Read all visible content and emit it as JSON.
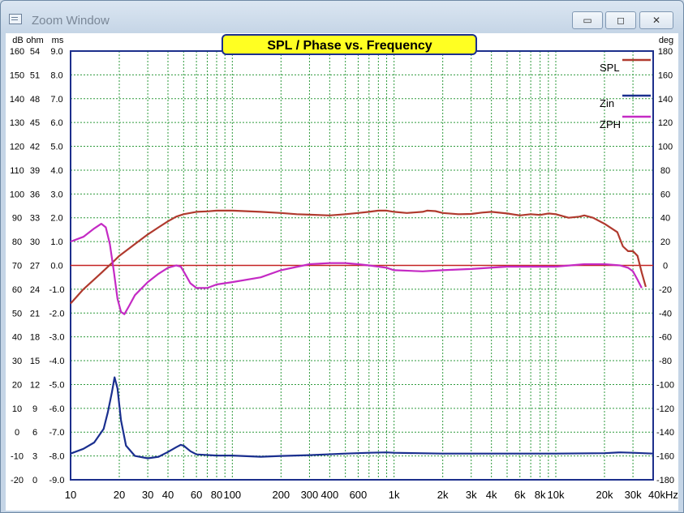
{
  "window": {
    "title": "Zoom Window",
    "buttons": {
      "minimize": "▭",
      "maximize": "◻",
      "close": "✕"
    }
  },
  "chart_data": {
    "type": "line",
    "title": "SPL / Phase vs. Frequency",
    "x_scale": "log",
    "xlim": [
      10,
      40000
    ],
    "x_ticks": [
      {
        "v": 10,
        "label": "10"
      },
      {
        "v": 20,
        "label": "20"
      },
      {
        "v": 30,
        "label": "30"
      },
      {
        "v": 40,
        "label": "40"
      },
      {
        "v": 60,
        "label": "60"
      },
      {
        "v": 80,
        "label": "80"
      },
      {
        "v": 100,
        "label": "100"
      },
      {
        "v": 200,
        "label": "200"
      },
      {
        "v": 300,
        "label": "300"
      },
      {
        "v": 400,
        "label": "400"
      },
      {
        "v": 600,
        "label": "600"
      },
      {
        "v": 1000,
        "label": "1k"
      },
      {
        "v": 2000,
        "label": "2k"
      },
      {
        "v": 3000,
        "label": "3k"
      },
      {
        "v": 4000,
        "label": "4k"
      },
      {
        "v": 6000,
        "label": "6k"
      },
      {
        "v": 8000,
        "label": "8k"
      },
      {
        "v": 10000,
        "label": "10k"
      },
      {
        "v": 20000,
        "label": "20k"
      },
      {
        "v": 30000,
        "label": "30k"
      },
      {
        "v": 40000,
        "label": "40kHz"
      }
    ],
    "left_axes": [
      {
        "unit": "dB",
        "ticks": [
          "160",
          "150",
          "140",
          "130",
          "120",
          "110",
          "100",
          "90",
          "80",
          "70",
          "60",
          "50",
          "40",
          "30",
          "20",
          "10",
          "0",
          "-10",
          "-20"
        ]
      },
      {
        "unit": "ohm",
        "ticks": [
          "54",
          "51",
          "48",
          "45",
          "42",
          "39",
          "36",
          "33",
          "30",
          "27",
          "24",
          "21",
          "18",
          "15",
          "12",
          "9",
          "6",
          "3",
          "0"
        ]
      },
      {
        "unit": "ms",
        "ticks": [
          "9.0",
          "8.0",
          "7.0",
          "6.0",
          "5.0",
          "4.0",
          "3.0",
          "2.0",
          "1.0",
          "0.0",
          "-1.0",
          "-2.0",
          "-3.0",
          "-4.0",
          "-5.0",
          "-6.0",
          "-7.0",
          "-8.0",
          "-9.0"
        ]
      }
    ],
    "right_axis": {
      "unit": "deg",
      "ticks": [
        "180",
        "160",
        "140",
        "120",
        "100",
        "80",
        "60",
        "40",
        "20",
        "0",
        "-20",
        "-40",
        "-60",
        "-80",
        "-100",
        "-120",
        "-140",
        "-160",
        "-180"
      ]
    },
    "ylim_db": [
      -20,
      160
    ],
    "ylim_deg": [
      -180,
      180
    ],
    "legend_position": "top-right",
    "grid": true,
    "series": [
      {
        "name": "SPL",
        "axis": "dB",
        "color": "#b03a2e",
        "points": [
          [
            10,
            54
          ],
          [
            12,
            60
          ],
          [
            15,
            66
          ],
          [
            18,
            71
          ],
          [
            20,
            74
          ],
          [
            25,
            79
          ],
          [
            30,
            83
          ],
          [
            35,
            86
          ],
          [
            40,
            88.5
          ],
          [
            45,
            90.5
          ],
          [
            50,
            91.5
          ],
          [
            60,
            92.5
          ],
          [
            70,
            92.7
          ],
          [
            80,
            93
          ],
          [
            100,
            93
          ],
          [
            150,
            92.5
          ],
          [
            200,
            92
          ],
          [
            250,
            91.5
          ],
          [
            300,
            91.3
          ],
          [
            400,
            91
          ],
          [
            500,
            91.5
          ],
          [
            600,
            92
          ],
          [
            700,
            92.5
          ],
          [
            800,
            93
          ],
          [
            900,
            93
          ],
          [
            1000,
            92.5
          ],
          [
            1200,
            92
          ],
          [
            1500,
            92.5
          ],
          [
            1600,
            93
          ],
          [
            1800,
            92.8
          ],
          [
            2000,
            92
          ],
          [
            2500,
            91.5
          ],
          [
            3000,
            91.6
          ],
          [
            3500,
            92.2
          ],
          [
            4000,
            92.5
          ],
          [
            5000,
            91.8
          ],
          [
            6000,
            91
          ],
          [
            7000,
            91.5
          ],
          [
            8000,
            91.2
          ],
          [
            9000,
            91.8
          ],
          [
            10000,
            91.5
          ],
          [
            12000,
            90
          ],
          [
            14000,
            90.5
          ],
          [
            15000,
            91
          ],
          [
            17000,
            90
          ],
          [
            20000,
            87.5
          ],
          [
            24000,
            84
          ],
          [
            26000,
            78
          ],
          [
            28000,
            76
          ],
          [
            30000,
            76
          ],
          [
            32000,
            74
          ],
          [
            34000,
            67
          ],
          [
            36000,
            61
          ]
        ]
      },
      {
        "name": "Zin",
        "axis": "ohm",
        "color": "#1a2f8f",
        "points": [
          [
            10,
            3.3
          ],
          [
            12,
            3.9
          ],
          [
            14,
            4.7
          ],
          [
            16,
            6.4
          ],
          [
            17,
            8.5
          ],
          [
            18,
            11
          ],
          [
            18.7,
            12.9
          ],
          [
            19.5,
            11.5
          ],
          [
            20.5,
            7.5
          ],
          [
            22,
            4.3
          ],
          [
            25,
            3
          ],
          [
            30,
            2.7
          ],
          [
            35,
            2.9
          ],
          [
            40,
            3.5
          ],
          [
            45,
            4.1
          ],
          [
            48,
            4.4
          ],
          [
            50,
            4.3
          ],
          [
            55,
            3.6
          ],
          [
            60,
            3.2
          ],
          [
            80,
            3.05
          ],
          [
            100,
            3.05
          ],
          [
            150,
            2.9
          ],
          [
            200,
            3
          ],
          [
            300,
            3.1
          ],
          [
            500,
            3.3
          ],
          [
            700,
            3.4
          ],
          [
            900,
            3.45
          ],
          [
            1000,
            3.4
          ],
          [
            2000,
            3.3
          ],
          [
            5000,
            3.3
          ],
          [
            10000,
            3.3
          ],
          [
            20000,
            3.35
          ],
          [
            25000,
            3.45
          ],
          [
            30000,
            3.4
          ],
          [
            40000,
            3.3
          ]
        ]
      },
      {
        "name": "ZPH",
        "axis": "deg",
        "color": "#c42ac4",
        "points": [
          [
            10,
            20
          ],
          [
            12,
            24
          ],
          [
            14,
            31
          ],
          [
            15.5,
            35
          ],
          [
            16.5,
            32
          ],
          [
            17.5,
            18
          ],
          [
            18.5,
            -5
          ],
          [
            19.5,
            -28
          ],
          [
            20.5,
            -39
          ],
          [
            21.5,
            -41
          ],
          [
            23,
            -34
          ],
          [
            25,
            -25
          ],
          [
            30,
            -14
          ],
          [
            35,
            -7
          ],
          [
            40,
            -2
          ],
          [
            45,
            0
          ],
          [
            48,
            -1
          ],
          [
            50,
            -5
          ],
          [
            55,
            -15
          ],
          [
            60,
            -19
          ],
          [
            70,
            -19
          ],
          [
            80,
            -16
          ],
          [
            100,
            -14
          ],
          [
            150,
            -10
          ],
          [
            200,
            -4
          ],
          [
            300,
            1
          ],
          [
            400,
            2
          ],
          [
            500,
            2
          ],
          [
            600,
            1
          ],
          [
            700,
            0
          ],
          [
            800,
            -1
          ],
          [
            900,
            -2
          ],
          [
            1000,
            -4
          ],
          [
            1500,
            -5
          ],
          [
            2000,
            -4
          ],
          [
            3000,
            -3
          ],
          [
            5000,
            -1
          ],
          [
            8000,
            -1
          ],
          [
            10000,
            -1
          ],
          [
            15000,
            1
          ],
          [
            20000,
            1
          ],
          [
            25000,
            0
          ],
          [
            28000,
            -2
          ],
          [
            30000,
            -5
          ],
          [
            32000,
            -12
          ],
          [
            34000,
            -19
          ]
        ]
      }
    ],
    "reference_line": {
      "axis": "deg",
      "value": 0,
      "color": "#c42222"
    }
  }
}
